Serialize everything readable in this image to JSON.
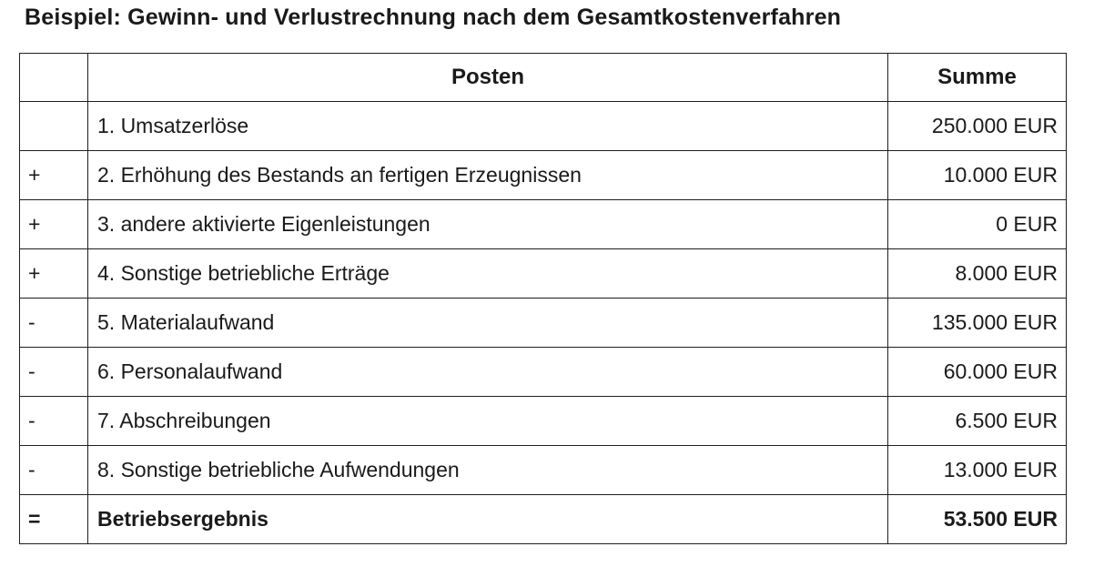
{
  "title": "Beispiel: Gewinn- und Verlustrechnung nach dem Gesamtkostenverfahren",
  "colors": {
    "background": "#ffffff",
    "text": "#1a1a1a",
    "table_border": "#1f1f1f"
  },
  "table": {
    "headers": {
      "sign": "",
      "posten": "Posten",
      "summe": "Summe"
    },
    "rows": [
      {
        "sign": "",
        "posten": "1. Umsatzerlöse",
        "summe": "250.000 EUR"
      },
      {
        "sign": "+",
        "posten": "2. Erhöhung des Bestands an fertigen Erzeugnissen",
        "summe": "10.000 EUR"
      },
      {
        "sign": "+",
        "posten": "3. andere aktivierte Eigenleistungen",
        "summe": "0 EUR"
      },
      {
        "sign": "+",
        "posten": "4. Sonstige betriebliche Erträge",
        "summe": "8.000 EUR"
      },
      {
        "sign": "-",
        "posten": "5. Materialaufwand",
        "summe": "135.000 EUR"
      },
      {
        "sign": "-",
        "posten": "6. Personalaufwand",
        "summe": "60.000 EUR"
      },
      {
        "sign": "-",
        "posten": "7. Abschreibungen",
        "summe": "6.500 EUR"
      },
      {
        "sign": "-",
        "posten": "8. Sonstige betriebliche Aufwendungen",
        "summe": "13.000 EUR"
      },
      {
        "sign": "=",
        "posten": "Betriebsergebnis",
        "summe": "53.500 EUR"
      }
    ]
  }
}
